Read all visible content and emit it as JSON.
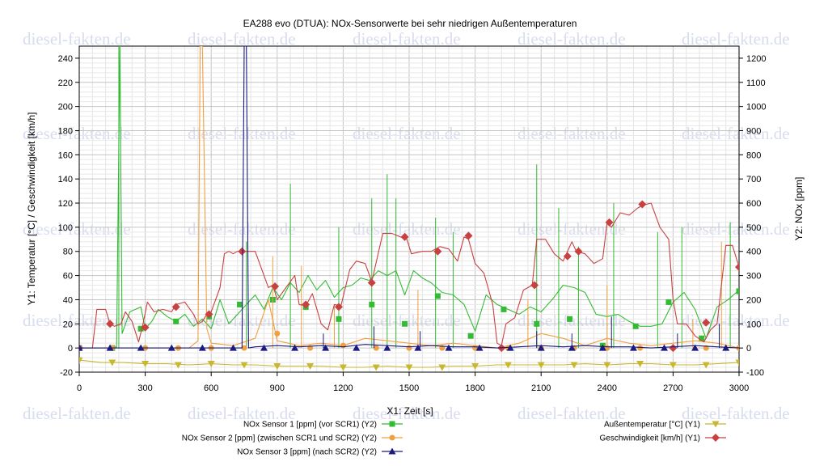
{
  "chart_data": {
    "type": "line",
    "title": "EA288 evo (DTUA): NOx-Sensorwerte bei sehr niedrigen Außentemperaturen",
    "xlabel": "X1: Zeit [s]",
    "ylabel_left": "Y1: Temperatur [°C] / Geschwindigkeit [km/h]",
    "ylabel_right": "Y2: NOx [ppm]",
    "xlim": [
      0,
      3000
    ],
    "ylim_left": [
      -20,
      250
    ],
    "ylim_right": [
      -100,
      1250
    ],
    "x_ticks": [
      0,
      300,
      600,
      900,
      1200,
      1500,
      1800,
      2100,
      2400,
      2700,
      3000
    ],
    "y_left_ticks": [
      -20,
      0,
      20,
      40,
      60,
      80,
      100,
      120,
      140,
      160,
      180,
      200,
      220,
      240
    ],
    "y_right_ticks": [
      -100,
      0,
      100,
      200,
      300,
      400,
      500,
      600,
      700,
      800,
      900,
      1000,
      1100,
      1200
    ],
    "grid": true,
    "legend_position": "bottom",
    "watermark": "diesel-fakten.de",
    "series": [
      {
        "name": "NOx Sensor 1 [ppm] (vor SCR1) (Y2)",
        "axis": "Y2",
        "color": "#33bb33",
        "marker": "square",
        "x": [
          0,
          150,
          170,
          185,
          195,
          230,
          280,
          300,
          330,
          360,
          400,
          440,
          480,
          520,
          560,
          600,
          640,
          680,
          720,
          760,
          800,
          840,
          880,
          920,
          960,
          1000,
          1040,
          1080,
          1120,
          1160,
          1200,
          1240,
          1280,
          1320,
          1360,
          1400,
          1440,
          1480,
          1520,
          1560,
          1600,
          1650,
          1700,
          1750,
          1800,
          1850,
          1900,
          1950,
          2000,
          2050,
          2100,
          2150,
          2200,
          2250,
          2300,
          2350,
          2400,
          2450,
          2500,
          2550,
          2600,
          2650,
          2700,
          2750,
          2800,
          2850,
          2900,
          2950,
          3000
        ],
        "y": [
          0,
          0,
          5,
          1250,
          60,
          150,
          170,
          80,
          110,
          160,
          130,
          110,
          140,
          90,
          120,
          80,
          200,
          100,
          140,
          180,
          220,
          160,
          250,
          200,
          270,
          230,
          300,
          240,
          280,
          210,
          250,
          260,
          290,
          280,
          320,
          300,
          320,
          220,
          320,
          290,
          270,
          230,
          220,
          180,
          70,
          220,
          180,
          160,
          140,
          170,
          150,
          200,
          260,
          250,
          230,
          140,
          130,
          140,
          110,
          90,
          90,
          100,
          190,
          230,
          160,
          40,
          170,
          200,
          240
        ],
        "markers": {
          "x": [
            0,
            150,
            280,
            440,
            590,
            730,
            880,
            1030,
            1180,
            1330,
            1480,
            1630,
            1780,
            1930,
            2080,
            2230,
            2380,
            2530,
            2680,
            2830,
            3000
          ],
          "y": [
            0,
            0,
            80,
            110,
            130,
            180,
            200,
            170,
            120,
            180,
            100,
            215,
            50,
            160,
            100,
            120,
            10,
            90,
            190,
            40,
            235
          ]
        },
        "spikes": [
          {
            "x": 180,
            "y": 1250
          },
          {
            "x": 760,
            "y": 440
          },
          {
            "x": 960,
            "y": 680
          },
          {
            "x": 1180,
            "y": 500
          },
          {
            "x": 1330,
            "y": 620
          },
          {
            "x": 1400,
            "y": 720
          },
          {
            "x": 1440,
            "y": 620
          },
          {
            "x": 1620,
            "y": 540
          },
          {
            "x": 1700,
            "y": 480
          },
          {
            "x": 2080,
            "y": 760
          },
          {
            "x": 2180,
            "y": 580
          },
          {
            "x": 2270,
            "y": 420
          },
          {
            "x": 2430,
            "y": 600
          },
          {
            "x": 2630,
            "y": 480
          },
          {
            "x": 2740,
            "y": 500
          },
          {
            "x": 2960,
            "y": 520
          }
        ]
      },
      {
        "name": "NOx Sensor 2 [ppm] (zwischen SCR1 und SCR2) (Y2)",
        "axis": "Y2",
        "color": "#f0a040",
        "marker": "circle",
        "x": [
          0,
          500,
          540,
          550,
          560,
          580,
          600,
          700,
          800,
          860,
          900,
          950,
          1000,
          1100,
          1200,
          1300,
          1400,
          1500,
          1600,
          1700,
          1800,
          1900,
          2000,
          2100,
          2200,
          2300,
          2400,
          2500,
          2600,
          2700,
          2800,
          2900,
          3000
        ],
        "y": [
          0,
          0,
          30,
          1250,
          1250,
          80,
          20,
          10,
          40,
          200,
          30,
          20,
          10,
          20,
          10,
          40,
          30,
          20,
          10,
          20,
          10,
          0,
          20,
          60,
          40,
          10,
          40,
          20,
          10,
          20,
          30,
          20,
          0
        ],
        "markers": {
          "x": [
            0,
            150,
            300,
            450,
            600,
            750,
            900,
            1050,
            1200,
            1350,
            1500,
            1650,
            1800,
            1950,
            2100,
            2250,
            2400,
            2550,
            2700,
            2850,
            3000
          ],
          "y": [
            0,
            0,
            0,
            0,
            0,
            0,
            60,
            0,
            10,
            0,
            0,
            0,
            0,
            0,
            0,
            0,
            0,
            0,
            0,
            0,
            0
          ]
        },
        "spikes": [
          {
            "x": 880,
            "y": 380
          },
          {
            "x": 1010,
            "y": 340
          },
          {
            "x": 1160,
            "y": 180
          },
          {
            "x": 1540,
            "y": 240
          },
          {
            "x": 2040,
            "y": 200
          },
          {
            "x": 2400,
            "y": 260
          },
          {
            "x": 2790,
            "y": 120
          },
          {
            "x": 2920,
            "y": 440
          }
        ]
      },
      {
        "name": "NOx Sensor 3 [ppm] (nach SCR2) (Y2)",
        "axis": "Y2",
        "color": "#1a1a80",
        "marker": "triangle",
        "x": [
          0,
          740,
          750,
          760,
          770,
          800,
          900,
          1000,
          1100,
          1200,
          1300,
          1400,
          1500,
          1600,
          1700,
          1800,
          1900,
          2000,
          2100,
          2200,
          2300,
          2400,
          2500,
          2600,
          2700,
          2800,
          2900,
          3000
        ],
        "y": [
          0,
          0,
          1250,
          1250,
          0,
          5,
          10,
          5,
          10,
          5,
          15,
          10,
          5,
          10,
          5,
          5,
          0,
          5,
          10,
          5,
          10,
          5,
          5,
          0,
          5,
          10,
          5,
          0
        ],
        "markers": {
          "x": [
            0,
            140,
            280,
            420,
            560,
            700,
            840,
            980,
            1120,
            1260,
            1400,
            1540,
            1680,
            1820,
            1960,
            2100,
            2240,
            2380,
            2520,
            2660,
            2800,
            2940
          ],
          "y": [
            0,
            0,
            0,
            0,
            0,
            0,
            0,
            0,
            0,
            0,
            0,
            0,
            0,
            0,
            0,
            0,
            0,
            0,
            0,
            0,
            0,
            0
          ]
        },
        "spikes": [
          {
            "x": 1110,
            "y": 60
          },
          {
            "x": 1340,
            "y": 90
          },
          {
            "x": 1550,
            "y": 70
          },
          {
            "x": 2080,
            "y": 70
          },
          {
            "x": 2240,
            "y": 60
          },
          {
            "x": 2420,
            "y": 130
          },
          {
            "x": 2720,
            "y": 60
          },
          {
            "x": 2910,
            "y": 100
          }
        ]
      },
      {
        "name": "Außentemperatur [°C] (Y1)",
        "axis": "Y1",
        "color": "#c8b830",
        "marker": "triangle-down",
        "x": [
          0,
          100,
          200,
          300,
          400,
          500,
          600,
          700,
          800,
          900,
          1000,
          1100,
          1200,
          1300,
          1400,
          1500,
          1600,
          1700,
          1800,
          1900,
          2000,
          2100,
          2200,
          2300,
          2400,
          2500,
          2600,
          2700,
          2800,
          2900,
          3000
        ],
        "y": [
          -10,
          -12,
          -12,
          -13,
          -13,
          -14,
          -13,
          -14,
          -14,
          -15,
          -15,
          -15,
          -16,
          -16,
          -15,
          -16,
          -16,
          -15,
          -15,
          -14,
          -14,
          -14,
          -14,
          -13,
          -14,
          -13,
          -13,
          -14,
          -14,
          -13,
          -12
        ],
        "markers": {
          "x": [
            0,
            150,
            300,
            450,
            600,
            750,
            900,
            1050,
            1200,
            1350,
            1500,
            1650,
            1800,
            1950,
            2100,
            2250,
            2400,
            2550,
            2700,
            2850,
            3000
          ],
          "y": [
            -10,
            -12,
            -13,
            -14,
            -13,
            -14,
            -15,
            -15,
            -16,
            -16,
            -16,
            -16,
            -15,
            -14,
            -14,
            -14,
            -14,
            -13,
            -14,
            -14,
            -12
          ]
        },
        "spikes": []
      },
      {
        "name": "Geschwindigkeit [km/h] (Y1)",
        "axis": "Y1",
        "color": "#c84040",
        "marker": "diamond",
        "x": [
          0,
          60,
          80,
          120,
          140,
          160,
          190,
          210,
          240,
          270,
          290,
          310,
          340,
          380,
          420,
          440,
          480,
          520,
          540,
          560,
          580,
          600,
          640,
          660,
          680,
          700,
          720,
          760,
          800,
          840,
          860,
          880,
          900,
          940,
          980,
          1000,
          1030,
          1060,
          1100,
          1130,
          1160,
          1190,
          1230,
          1260,
          1300,
          1330,
          1380,
          1420,
          1460,
          1490,
          1510,
          1560,
          1600,
          1640,
          1680,
          1720,
          1750,
          1770,
          1800,
          1840,
          1880,
          1900,
          1920,
          1940,
          1980,
          2020,
          2060,
          2080,
          2120,
          2160,
          2200,
          2240,
          2260,
          2300,
          2340,
          2380,
          2400,
          2420,
          2460,
          2500,
          2540,
          2560,
          2600,
          2640,
          2680,
          2700,
          2720,
          2760,
          2800,
          2840,
          2870,
          2900,
          2940,
          2970,
          3000
        ],
        "y": [
          0,
          0,
          32,
          32,
          20,
          18,
          20,
          30,
          22,
          5,
          20,
          38,
          30,
          32,
          30,
          36,
          38,
          28,
          20,
          22,
          28,
          30,
          50,
          78,
          80,
          78,
          80,
          80,
          80,
          60,
          50,
          52,
          40,
          50,
          60,
          36,
          35,
          45,
          20,
          15,
          36,
          35,
          65,
          72,
          70,
          55,
          95,
          95,
          92,
          90,
          78,
          80,
          80,
          84,
          82,
          72,
          92,
          90,
          70,
          62,
          36,
          4,
          2,
          20,
          25,
          48,
          52,
          90,
          90,
          78,
          72,
          88,
          80,
          78,
          70,
          74,
          104,
          100,
          112,
          110,
          116,
          118,
          120,
          100,
          90,
          40,
          20,
          20,
          10,
          5,
          15,
          20,
          85,
          85,
          67
        ],
        "markers": {
          "x": [
            0,
            140,
            300,
            440,
            590,
            740,
            890,
            1030,
            1180,
            1330,
            1480,
            1630,
            1770,
            1920,
            2070,
            2220,
            2270,
            2410,
            2560,
            2700,
            2850,
            3000
          ],
          "y": [
            0,
            20,
            17,
            34,
            28,
            80,
            51,
            36,
            34,
            54,
            92,
            80,
            93,
            0,
            52,
            76,
            80,
            104,
            119,
            0,
            21,
            67
          ]
        },
        "spikes": []
      }
    ]
  }
}
